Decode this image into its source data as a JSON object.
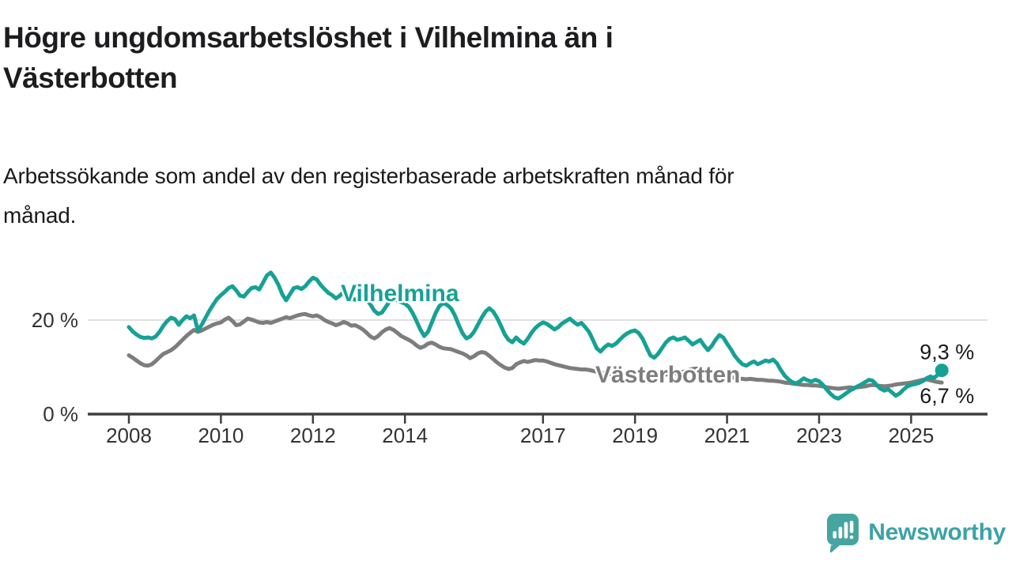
{
  "title": "Högre ungdomsarbetslöshet i Vilhelmina än i Västerbotten",
  "title_lines": [
    "Högre ungdomsarbetslöshet i Vilhelmina än i",
    "Västerbotten"
  ],
  "subtitle": "Arbetssökande som andel av den registerbaserade arbetskraften månad för månad.",
  "subtitle_lines": [
    "Arbetssökande som andel av den registerbaserade arbetskraften månad för",
    "månad."
  ],
  "branding": {
    "name": "Newsworthy",
    "logo_icon": "newsworthy-speech-bubble-bar-chart-icon",
    "bubble_color": "#46a5a0",
    "text_color": "#3ba3a6"
  },
  "colors": {
    "vilhelmina": "#16a195",
    "vasterbotten": "#7d7d7d",
    "axis": "#3f3f3f",
    "tick_text": "#333333",
    "gridline": "#e0e0e0",
    "end_label_text": "#1a1a1a"
  },
  "chart_data": {
    "type": "line",
    "title": "Högre ungdomsarbetslöshet i Vilhelmina än i Västerbotten",
    "subtitle": "Arbetssökande som andel av den registerbaserade arbetskraften månad för månad.",
    "x_unit": "month",
    "x_start": "2008-01",
    "x_end": "2025-09",
    "ylim": [
      0,
      32
    ],
    "y_ticks": [
      {
        "value": 0,
        "label": "0 %"
      },
      {
        "value": 20,
        "label": "20 %"
      }
    ],
    "x_ticks": [
      {
        "year": 2008,
        "label": "2008"
      },
      {
        "year": 2010,
        "label": "2010"
      },
      {
        "year": 2012,
        "label": "2012"
      },
      {
        "year": 2014,
        "label": "2014"
      },
      {
        "year": 2017,
        "label": "2017"
      },
      {
        "year": 2019,
        "label": "2019"
      },
      {
        "year": 2021,
        "label": "2021"
      },
      {
        "year": 2023,
        "label": "2023"
      },
      {
        "year": 2025,
        "label": "2025"
      }
    ],
    "grid": "horizontal gridline at 20% only",
    "legend_position": "inline labels on lines",
    "series": [
      {
        "name": "Vilhelmina",
        "color": "#16a195",
        "end_label": "9,3 %",
        "end_value": 9.3,
        "end_dot": true,
        "values": [
          18.5,
          17.6,
          16.9,
          16.4,
          16.2,
          16.3,
          16.1,
          16.5,
          17.5,
          18.8,
          19.8,
          20.5,
          20.2,
          19.0,
          20.0,
          20.8,
          20.4,
          21.0,
          17.8,
          19.0,
          20.5,
          22.0,
          23.3,
          24.5,
          25.3,
          26.0,
          26.8,
          27.2,
          26.3,
          25.2,
          25.0,
          26.0,
          26.8,
          27.0,
          26.5,
          28.0,
          29.5,
          30.1,
          29.0,
          27.5,
          25.5,
          24.2,
          25.5,
          26.8,
          27.0,
          26.6,
          27.2,
          28.2,
          29.0,
          28.6,
          27.5,
          26.6,
          25.8,
          25.3,
          24.6,
          25.2,
          26.0,
          25.5,
          24.8,
          24.3,
          24.6,
          25.0,
          24.4,
          23.3,
          22.0,
          21.3,
          21.6,
          22.8,
          24.0,
          24.6,
          24.2,
          23.8,
          23.5,
          22.8,
          21.5,
          19.8,
          18.0,
          16.6,
          17.5,
          19.5,
          21.5,
          23.0,
          23.6,
          23.2,
          22.5,
          21.0,
          19.0,
          17.2,
          16.1,
          16.5,
          17.5,
          19.0,
          20.5,
          21.8,
          22.5,
          21.8,
          20.5,
          18.8,
          17.0,
          15.8,
          15.3,
          16.3,
          15.5,
          15.0,
          16.0,
          17.3,
          18.3,
          19.0,
          19.5,
          19.2,
          18.6,
          18.0,
          18.5,
          19.3,
          19.8,
          20.3,
          19.6,
          19.0,
          19.4,
          18.5,
          17.5,
          15.8,
          14.0,
          13.3,
          14.2,
          14.8,
          14.5,
          15.0,
          15.8,
          16.6,
          17.2,
          17.6,
          17.8,
          17.2,
          16.0,
          14.2,
          12.5,
          12.0,
          12.8,
          14.0,
          15.2,
          16.0,
          16.3,
          15.8,
          16.0,
          16.3,
          15.6,
          14.8,
          15.3,
          15.8,
          14.6,
          13.6,
          14.5,
          15.8,
          16.8,
          16.3,
          15.0,
          13.8,
          12.4,
          11.4,
          10.6,
          10.3,
          10.8,
          11.2,
          10.6,
          11.0,
          11.4,
          11.2,
          11.6,
          10.8,
          9.4,
          8.2,
          7.4,
          6.8,
          6.5,
          7.0,
          7.6,
          7.2,
          6.9,
          7.3,
          7.0,
          6.2,
          5.2,
          4.3,
          3.6,
          3.3,
          3.8,
          4.4,
          5.0,
          5.4,
          5.9,
          6.3,
          6.8,
          7.3,
          7.1,
          6.2,
          5.4,
          5.0,
          5.3,
          4.6,
          3.9,
          4.4,
          5.2,
          5.9,
          6.2,
          6.4,
          6.6,
          7.0,
          7.6,
          8.0,
          7.7,
          8.4,
          9.3
        ]
      },
      {
        "name": "Västerbotten",
        "color": "#7d7d7d",
        "end_label": "6,7 %",
        "end_value": 6.7,
        "end_dot": false,
        "values": [
          12.5,
          12.0,
          11.4,
          10.8,
          10.4,
          10.3,
          10.6,
          11.3,
          12.1,
          12.8,
          13.2,
          13.6,
          14.2,
          15.0,
          15.8,
          16.6,
          17.3,
          17.9,
          17.5,
          17.8,
          18.2,
          18.6,
          19.0,
          19.3,
          19.5,
          20.1,
          20.5,
          19.8,
          18.9,
          19.1,
          19.7,
          20.3,
          20.1,
          19.8,
          19.5,
          19.4,
          19.6,
          19.4,
          19.7,
          20.0,
          20.3,
          20.6,
          20.4,
          20.7,
          21.0,
          21.2,
          21.3,
          21.0,
          20.8,
          21.0,
          20.6,
          20.0,
          19.6,
          19.3,
          18.9,
          19.2,
          19.6,
          19.3,
          18.8,
          18.9,
          18.5,
          18.0,
          17.3,
          16.5,
          16.1,
          16.6,
          17.4,
          18.0,
          18.3,
          17.9,
          17.3,
          16.6,
          16.2,
          15.8,
          15.3,
          14.6,
          14.1,
          14.4,
          15.0,
          15.2,
          14.8,
          14.3,
          14.0,
          13.9,
          13.8,
          13.5,
          13.2,
          12.9,
          12.5,
          11.9,
          12.3,
          12.9,
          13.2,
          13.0,
          12.4,
          11.7,
          11.0,
          10.4,
          9.9,
          9.6,
          9.8,
          10.6,
          11.0,
          11.3,
          11.1,
          11.3,
          11.5,
          11.4,
          11.4,
          11.2,
          10.9,
          10.6,
          10.4,
          10.2,
          10.0,
          9.8,
          9.7,
          9.6,
          9.5,
          9.5,
          9.4,
          9.2,
          9.0,
          8.8,
          8.7,
          8.6,
          8.5,
          8.6,
          8.7,
          8.6,
          8.5,
          8.5,
          8.6,
          8.5,
          8.4,
          8.3,
          8.2,
          8.1,
          8.2,
          8.3,
          8.4,
          8.5,
          8.6,
          8.7,
          8.9,
          9.1,
          9.4,
          9.6,
          9.7,
          9.5,
          9.3,
          9.1,
          8.9,
          8.6,
          8.4,
          8.2,
          8.0,
          7.8,
          7.7,
          7.6,
          7.5,
          7.4,
          7.5,
          7.4,
          7.3,
          7.3,
          7.2,
          7.1,
          7.1,
          7.0,
          6.9,
          6.7,
          6.6,
          6.5,
          6.4,
          6.3,
          6.2,
          6.2,
          6.1,
          6.1,
          6.0,
          5.9,
          5.7,
          5.6,
          5.5,
          5.4,
          5.5,
          5.6,
          5.7,
          5.6,
          5.7,
          5.8,
          5.9,
          6.1,
          6.2,
          6.1,
          6.0,
          5.9,
          6.0,
          6.1,
          6.3,
          6.4,
          6.5,
          6.6,
          6.7,
          6.9,
          7.1,
          7.3,
          7.4,
          7.2,
          7.0,
          6.8,
          6.7
        ]
      }
    ]
  }
}
